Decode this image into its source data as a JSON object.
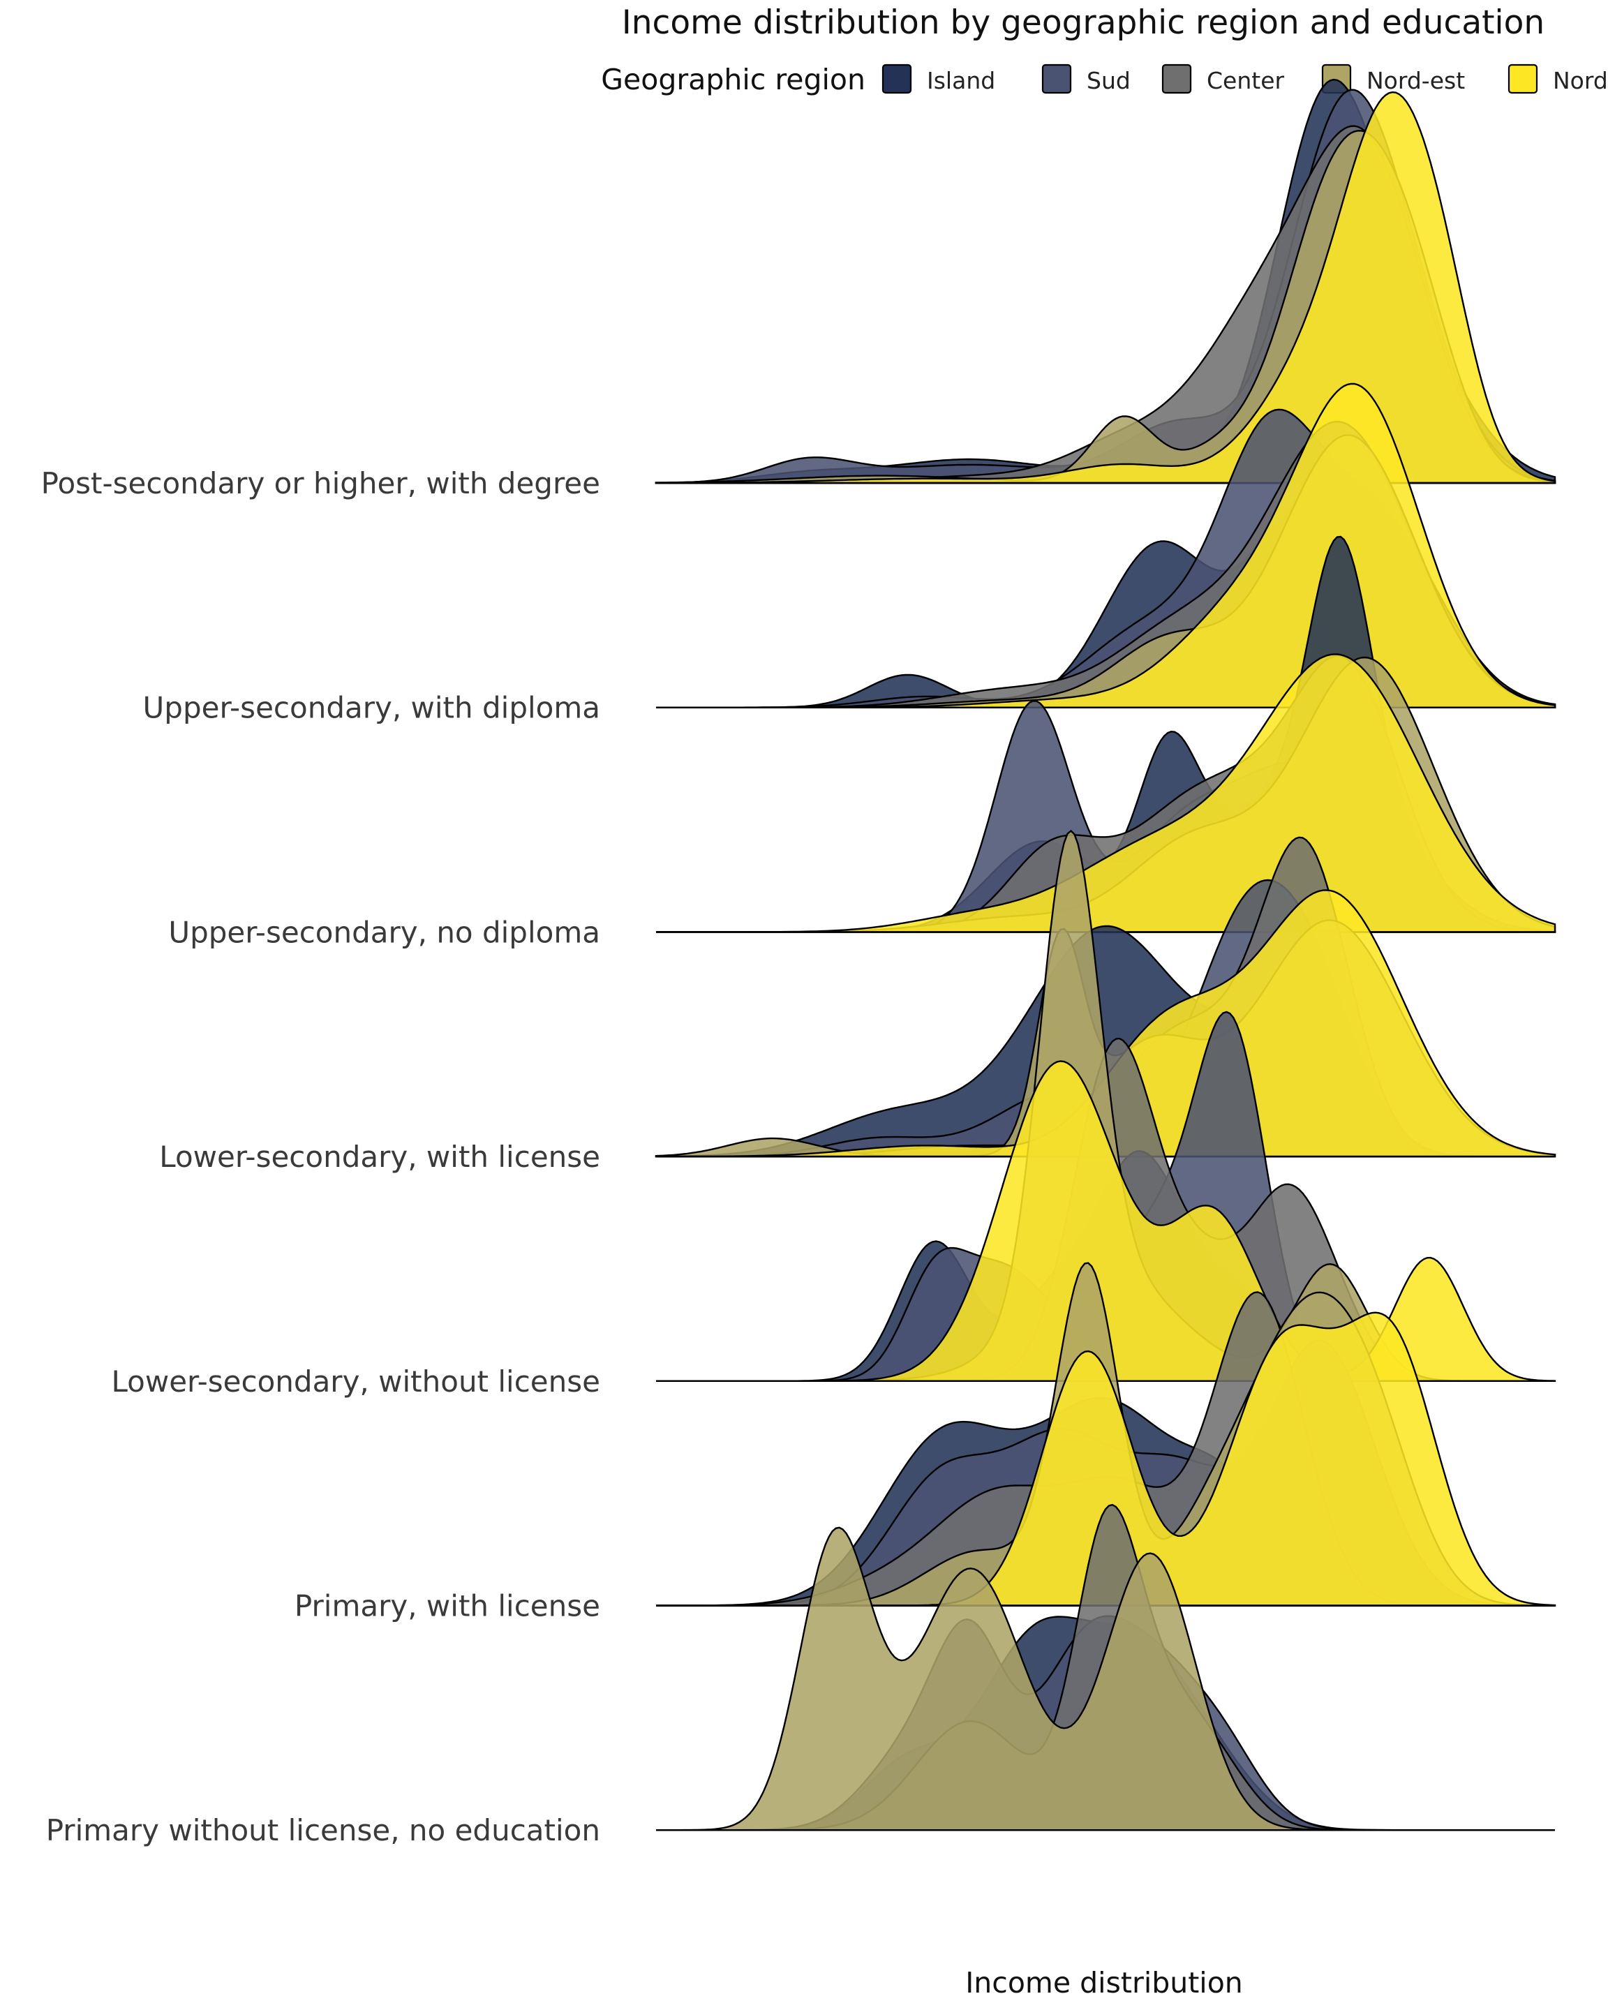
{
  "chart_data": {
    "type": "ridgeline",
    "title": "Income distribution by geographic region and education",
    "xlabel": "Income distribution",
    "ylabel": "",
    "legend": {
      "title": "Geographic region",
      "placement": "top",
      "entries": [
        "Island",
        "Sud",
        "Center",
        "Nord-est",
        "Nord-ovest"
      ]
    },
    "colors": {
      "Island": "#233256",
      "Sud": "#4b5373",
      "Center": "#6f6f6f",
      "Nord-est": "#aea466",
      "Nord-ovest": "#fde725"
    },
    "fill_opacity": 0.87,
    "xlim": [
      0,
      1
    ],
    "categories": [
      "Primary without license, no education",
      "Primary, with license",
      "Lower-secondary, without license",
      "Lower-secondary, with license",
      "Upper-secondary, no diploma",
      "Upper-secondary, with diploma",
      "Post-secondary or higher, with degree"
    ],
    "series": [
      {
        "category": "Post-secondary or higher, with degree",
        "ridges": [
          {
            "region": "Island",
            "peaks": [
              [
                0.17,
                0.025,
                0.06
              ],
              [
                0.35,
                0.065,
                0.09
              ],
              [
                0.55,
                0.09,
                0.05
              ],
              [
                0.74,
                0.85,
                0.055
              ],
              [
                0.82,
                0.45,
                0.07
              ]
            ]
          },
          {
            "region": "Sud",
            "peaks": [
              [
                0.17,
                0.06,
                0.05
              ],
              [
                0.35,
                0.05,
                0.1
              ],
              [
                0.58,
                0.16,
                0.06
              ],
              [
                0.76,
                0.88,
                0.06
              ],
              [
                0.83,
                0.35,
                0.06
              ]
            ]
          },
          {
            "region": "Center",
            "peaks": [
              [
                0.38,
                0.02,
                0.1
              ],
              [
                0.52,
                0.1,
                0.06
              ],
              [
                0.67,
                0.42,
                0.07
              ],
              [
                0.79,
                0.87,
                0.065
              ]
            ]
          },
          {
            "region": "Nord-est",
            "peaks": [
              [
                0.25,
                0.02,
                0.1
              ],
              [
                0.52,
                0.18,
                0.035
              ],
              [
                0.62,
                0.07,
                0.04
              ],
              [
                0.76,
                0.82,
                0.06
              ],
              [
                0.84,
                0.4,
                0.05
              ]
            ]
          },
          {
            "region": "Nord-ovest",
            "peaks": [
              [
                0.3,
                0.012,
                0.1
              ],
              [
                0.52,
                0.05,
                0.06
              ],
              [
                0.72,
                0.25,
                0.06
              ],
              [
                0.82,
                0.98,
                0.055
              ],
              [
                0.88,
                0.15,
                0.035
              ]
            ]
          }
        ]
      },
      {
        "category": "Upper-secondary, with diploma",
        "ridges": [
          {
            "region": "Island",
            "peaks": [
              [
                0.28,
                0.09,
                0.045
              ],
              [
                0.56,
                0.45,
                0.06
              ],
              [
                0.7,
                0.35,
                0.05
              ],
              [
                0.78,
                0.4,
                0.06
              ]
            ]
          },
          {
            "region": "Sud",
            "peaks": [
              [
                0.3,
                0.03,
                0.06
              ],
              [
                0.55,
                0.22,
                0.07
              ],
              [
                0.68,
                0.65,
                0.055
              ],
              [
                0.8,
                0.52,
                0.07
              ]
            ]
          },
          {
            "region": "Center",
            "peaks": [
              [
                0.4,
                0.05,
                0.08
              ],
              [
                0.58,
                0.2,
                0.07
              ],
              [
                0.76,
                0.78,
                0.08
              ]
            ]
          },
          {
            "region": "Nord-est",
            "peaks": [
              [
                0.4,
                0.02,
                0.08
              ],
              [
                0.57,
                0.18,
                0.06
              ],
              [
                0.77,
                0.75,
                0.075
              ]
            ]
          },
          {
            "region": "Nord-ovest",
            "peaks": [
              [
                0.45,
                0.02,
                0.08
              ],
              [
                0.64,
                0.22,
                0.07
              ],
              [
                0.78,
                0.86,
                0.07
              ]
            ]
          }
        ]
      },
      {
        "category": "Upper-secondary, no diploma",
        "ridges": [
          {
            "region": "Island",
            "peaks": [
              [
                0.43,
                0.25,
                0.06
              ],
              [
                0.57,
                0.48,
                0.035
              ],
              [
                0.66,
                0.25,
                0.05
              ],
              [
                0.76,
                0.72,
                0.035
              ],
              [
                0.78,
                0.35,
                0.07
              ]
            ]
          },
          {
            "region": "Sud",
            "peaks": [
              [
                0.42,
                0.63,
                0.042
              ],
              [
                0.58,
                0.23,
                0.06
              ],
              [
                0.72,
                0.45,
                0.08
              ]
            ]
          },
          {
            "region": "Center",
            "peaks": [
              [
                0.44,
                0.2,
                0.05
              ],
              [
                0.62,
                0.4,
                0.09
              ],
              [
                0.77,
                0.65,
                0.06
              ]
            ]
          },
          {
            "region": "Nord-est",
            "peaks": [
              [
                0.4,
                0.04,
                0.08
              ],
              [
                0.6,
                0.25,
                0.07
              ],
              [
                0.79,
                0.75,
                0.075
              ]
            ]
          },
          {
            "region": "Nord-ovest",
            "peaks": [
              [
                0.35,
                0.04,
                0.07
              ],
              [
                0.55,
                0.22,
                0.09
              ],
              [
                0.76,
                0.75,
                0.09
              ]
            ]
          }
        ]
      },
      {
        "category": "Lower-secondary, with license",
        "ridges": [
          {
            "region": "Island",
            "peaks": [
              [
                0.27,
                0.12,
                0.08
              ],
              [
                0.5,
                0.63,
                0.085
              ],
              [
                0.68,
                0.28,
                0.06
              ]
            ]
          },
          {
            "region": "Sud",
            "peaks": [
              [
                0.25,
                0.05,
                0.06
              ],
              [
                0.45,
                0.18,
                0.07
              ],
              [
                0.66,
                0.65,
                0.06
              ],
              [
                0.74,
                0.3,
                0.05
              ]
            ]
          },
          {
            "region": "Center",
            "peaks": [
              [
                0.35,
                0.03,
                0.08
              ],
              [
                0.56,
                0.25,
                0.06
              ],
              [
                0.72,
                0.85,
                0.05
              ],
              [
                0.62,
                0.15,
                0.05
              ]
            ]
          },
          {
            "region": "Nord-est",
            "peaks": [
              [
                0.13,
                0.05,
                0.05
              ],
              [
                0.45,
                0.55,
                0.025
              ],
              [
                0.55,
                0.3,
                0.06
              ],
              [
                0.75,
                0.65,
                0.08
              ]
            ]
          },
          {
            "region": "Nord-ovest",
            "peaks": [
              [
                0.3,
                0.03,
                0.08
              ],
              [
                0.57,
                0.35,
                0.07
              ],
              [
                0.75,
                0.72,
                0.08
              ]
            ]
          }
        ]
      },
      {
        "category": "Lower-secondary, without license",
        "ridges": [
          {
            "region": "Island",
            "peaks": [
              [
                0.31,
                0.38,
                0.04
              ],
              [
                0.45,
                0.25,
                0.05
              ],
              [
                0.54,
                0.55,
                0.045
              ],
              [
                0.64,
                0.25,
                0.05
              ]
            ]
          },
          {
            "region": "Sud",
            "peaks": [
              [
                0.31,
                0.26,
                0.035
              ],
              [
                0.39,
                0.3,
                0.05
              ],
              [
                0.55,
                0.4,
                0.05
              ],
              [
                0.64,
                0.93,
                0.04
              ]
            ]
          },
          {
            "region": "Center",
            "peaks": [
              [
                0.51,
                0.9,
                0.045
              ],
              [
                0.61,
                0.3,
                0.05
              ],
              [
                0.7,
                0.4,
                0.04
              ],
              [
                0.75,
                0.18,
                0.04
              ]
            ]
          },
          {
            "region": "Nord-est",
            "peaks": [
              [
                0.46,
                1.25,
                0.033
              ],
              [
                0.5,
                0.3,
                0.08
              ],
              [
                0.75,
                0.32,
                0.04
              ]
            ]
          },
          {
            "region": "Nord-ovest",
            "peaks": [
              [
                0.45,
                0.88,
                0.065
              ],
              [
                0.62,
                0.45,
                0.05
              ],
              [
                0.86,
                0.34,
                0.038
              ]
            ]
          }
        ]
      },
      {
        "category": "Primary, with license",
        "ridges": [
          {
            "region": "Island",
            "peaks": [
              [
                0.32,
                0.45,
                0.07
              ],
              [
                0.5,
                0.55,
                0.08
              ],
              [
                0.64,
                0.25,
                0.05
              ]
            ]
          },
          {
            "region": "Sud",
            "peaks": [
              [
                0.32,
                0.35,
                0.06
              ],
              [
                0.45,
                0.42,
                0.06
              ],
              [
                0.58,
                0.35,
                0.06
              ],
              [
                0.74,
                0.72,
                0.06
              ]
            ]
          },
          {
            "region": "Center",
            "peaks": [
              [
                0.25,
                0.05,
                0.06
              ],
              [
                0.38,
                0.3,
                0.07
              ],
              [
                0.52,
                0.3,
                0.06
              ],
              [
                0.67,
                0.85,
                0.05
              ]
            ]
          },
          {
            "region": "Nord-est",
            "peaks": [
              [
                0.36,
                0.15,
                0.06
              ],
              [
                0.48,
                0.92,
                0.035
              ],
              [
                0.62,
                0.2,
                0.05
              ],
              [
                0.72,
                0.72,
                0.06
              ],
              [
                0.8,
                0.35,
                0.05
              ]
            ]
          },
          {
            "region": "Nord-ovest",
            "peaks": [
              [
                0.48,
                0.7,
                0.05
              ],
              [
                0.7,
                0.72,
                0.06
              ],
              [
                0.82,
                0.68,
                0.05
              ]
            ]
          }
        ]
      },
      {
        "category": "Primary without license, no education",
        "ridges": [
          {
            "region": "Island",
            "peaks": [
              [
                0.28,
                0.18,
                0.05
              ],
              [
                0.42,
                0.5,
                0.06
              ],
              [
                0.54,
                0.45,
                0.06
              ],
              [
                0.63,
                0.1,
                0.05
              ]
            ]
          },
          {
            "region": "Sud",
            "peaks": [
              [
                0.28,
                0.2,
                0.05
              ],
              [
                0.35,
                0.48,
                0.04
              ],
              [
                0.47,
                0.4,
                0.05
              ],
              [
                0.56,
                0.42,
                0.06
              ],
              [
                0.64,
                0.1,
                0.04
              ]
            ]
          },
          {
            "region": "Center",
            "peaks": [
              [
                0.35,
                0.3,
                0.06
              ],
              [
                0.5,
                0.7,
                0.035
              ],
              [
                0.56,
                0.35,
                0.05
              ],
              [
                0.63,
                0.1,
                0.04
              ]
            ]
          },
          {
            "region": "Nord-est",
            "peaks": [
              [
                0.2,
                0.8,
                0.04
              ],
              [
                0.35,
                0.72,
                0.06
              ],
              [
                0.55,
                0.76,
                0.05
              ]
            ]
          }
        ]
      }
    ]
  }
}
